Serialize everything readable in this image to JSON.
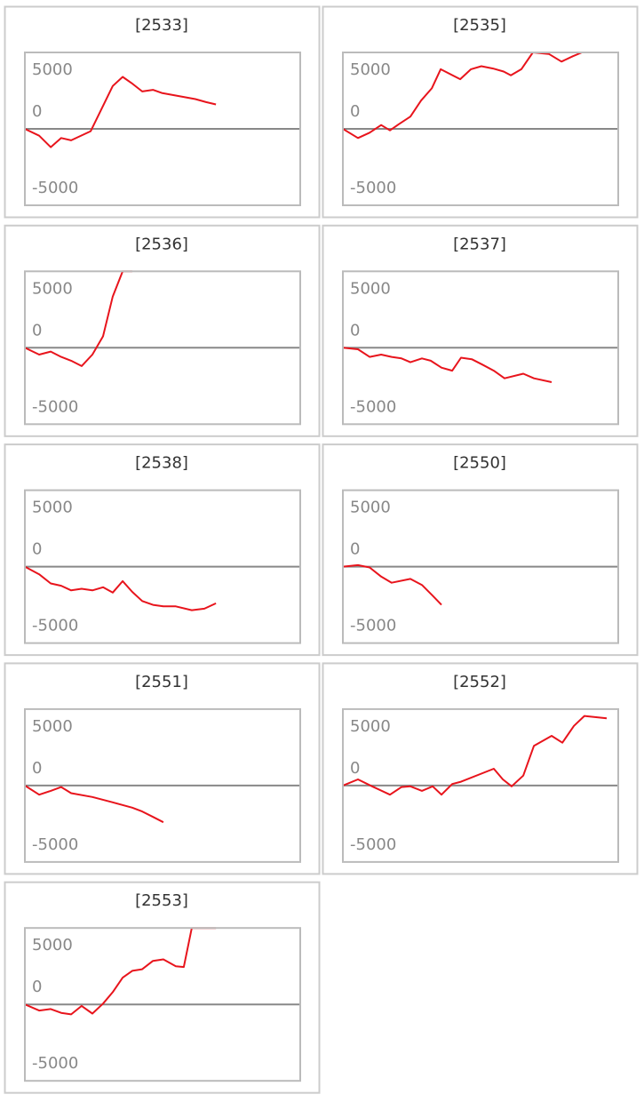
{
  "chart_data": [
    {
      "type": "line",
      "title": "[2533]",
      "color": "#e8141c",
      "xlim": [
        0,
        100
      ],
      "ylim": [
        -5000,
        5000
      ],
      "yticks": [
        5000,
        0,
        -5000
      ],
      "grid": true,
      "x": [
        0,
        5.2,
        9.4,
        13.2,
        16.8,
        23.9,
        31.9,
        35.5,
        38.7,
        42.6,
        46.5,
        49.7,
        61.9,
        65.8,
        69.4
      ],
      "values": [
        0,
        -450,
        -1200,
        -600,
        -750,
        -150,
        2800,
        3400,
        3000,
        2450,
        2550,
        2350,
        1950,
        1750,
        1600
      ]
    },
    {
      "type": "line",
      "title": "[2535]",
      "color": "#e8141c",
      "xlim": [
        0,
        100
      ],
      "ylim": [
        -5000,
        5000
      ],
      "yticks": [
        5000,
        0,
        -5000
      ],
      "grid": true,
      "x": [
        0,
        5.5,
        9.7,
        13.9,
        17.1,
        20.3,
        24.5,
        28.4,
        32.3,
        35.5,
        42.6,
        46.5,
        50.3,
        54.5,
        58.4,
        61,
        64.8,
        69,
        74.8,
        79.4,
        83.5,
        86.8,
        95.5
      ],
      "values": [
        0,
        -600,
        -250,
        250,
        -100,
        300,
        800,
        1850,
        2650,
        3900,
        3250,
        3900,
        4100,
        3950,
        3750,
        3500,
        3900,
        5000,
        4900,
        4400,
        4750,
        5000,
        5000
      ]
    },
    {
      "type": "line",
      "title": "[2536]",
      "color": "#e8141c",
      "xlim": [
        0,
        100
      ],
      "ylim": [
        -5000,
        5000
      ],
      "yticks": [
        5000,
        0,
        -5000
      ],
      "grid": true,
      "x": [
        0,
        5.2,
        9.4,
        13.2,
        16.8,
        20.6,
        24.5,
        28.4,
        31.9,
        35.5,
        39
      ],
      "values": [
        0,
        -450,
        -250,
        -600,
        -850,
        -1200,
        -450,
        750,
        3350,
        5000,
        5000
      ]
    },
    {
      "type": "line",
      "title": "[2537]",
      "color": "#e8141c",
      "xlim": [
        0,
        100
      ],
      "ylim": [
        -5000,
        5000
      ],
      "yticks": [
        5000,
        0,
        -5000
      ],
      "grid": true,
      "x": [
        0,
        5.5,
        9.7,
        13.9,
        17.7,
        21.3,
        24.5,
        28.7,
        31.9,
        35.8,
        39.7,
        42.9,
        46.8,
        50.6,
        54.8,
        58.7,
        65.5,
        69.4,
        75.8
      ],
      "values": [
        0,
        -100,
        -600,
        -450,
        -600,
        -700,
        -950,
        -700,
        -850,
        -1300,
        -1500,
        -650,
        -750,
        -1100,
        -1500,
        -2000,
        -1700,
        -2000,
        -2250
      ]
    },
    {
      "type": "line",
      "title": "[2538]",
      "color": "#e8141c",
      "xlim": [
        0,
        100
      ],
      "ylim": [
        -5000,
        5000
      ],
      "yticks": [
        5000,
        0,
        -5000
      ],
      "grid": true,
      "x": [
        0,
        5.2,
        9.4,
        13.2,
        16.8,
        20.6,
        24.5,
        28.4,
        31.9,
        35.5,
        39,
        42.6,
        46.5,
        50.3,
        54.8,
        60.6,
        65.2,
        69.4
      ],
      "values": [
        0,
        -500,
        -1100,
        -1250,
        -1550,
        -1450,
        -1550,
        -1350,
        -1700,
        -950,
        -1650,
        -2250,
        -2500,
        -2600,
        -2600,
        -2850,
        -2750,
        -2400
      ]
    },
    {
      "type": "line",
      "title": "[2550]",
      "color": "#e8141c",
      "xlim": [
        0,
        100
      ],
      "ylim": [
        -5000,
        5000
      ],
      "yticks": [
        5000,
        0,
        -5000
      ],
      "grid": true,
      "x": [
        0,
        5.5,
        9.7,
        13.9,
        17.7,
        24.5,
        28.7,
        32.6,
        35.8
      ],
      "values": [
        0,
        100,
        -50,
        -650,
        -1050,
        -800,
        -1200,
        -1900,
        -2500
      ]
    },
    {
      "type": "line",
      "title": "[2551]",
      "color": "#e8141c",
      "xlim": [
        0,
        100
      ],
      "ylim": [
        -5000,
        5000
      ],
      "yticks": [
        5000,
        0,
        -5000
      ],
      "grid": true,
      "x": [
        0,
        5.2,
        9.4,
        13.2,
        16.8,
        24.5,
        31.9,
        39,
        42.6,
        46.5,
        50.3
      ],
      "values": [
        0,
        -600,
        -350,
        -100,
        -500,
        -750,
        -1100,
        -1450,
        -1700,
        -2050,
        -2400
      ]
    },
    {
      "type": "line",
      "title": "[2552]",
      "color": "#e8141c",
      "xlim": [
        0,
        100
      ],
      "ylim": [
        -5000,
        5000
      ],
      "yticks": [
        5000,
        0,
        -5000
      ],
      "grid": true,
      "x": [
        0,
        5.5,
        10.6,
        17.1,
        21.3,
        24.5,
        28.7,
        32.6,
        35.8,
        39.7,
        42.9,
        54.8,
        58.1,
        61.3,
        65.5,
        69.4,
        75.8,
        79.7,
        83.9,
        87.7,
        95.8
      ],
      "values": [
        0,
        400,
        -50,
        -600,
        -100,
        -50,
        -350,
        -50,
        -600,
        100,
        250,
        1100,
        400,
        -50,
        650,
        2600,
        3250,
        2800,
        3900,
        4550,
        4400
      ]
    },
    {
      "type": "line",
      "title": "[2553]",
      "color": "#e8141c",
      "xlim": [
        0,
        100
      ],
      "ylim": [
        -5000,
        5000
      ],
      "yticks": [
        5000,
        0,
        -5000
      ],
      "grid": true,
      "x": [
        0,
        5.2,
        9.4,
        13.2,
        16.8,
        20.6,
        24.5,
        28.4,
        31.9,
        35.5,
        39,
        42.6,
        46.5,
        50.3,
        54.8,
        57.7,
        60.6,
        69.4
      ],
      "values": [
        0,
        -400,
        -300,
        -550,
        -650,
        -100,
        -600,
        50,
        800,
        1750,
        2200,
        2300,
        2850,
        2950,
        2500,
        2450,
        5000,
        5000
      ]
    }
  ]
}
